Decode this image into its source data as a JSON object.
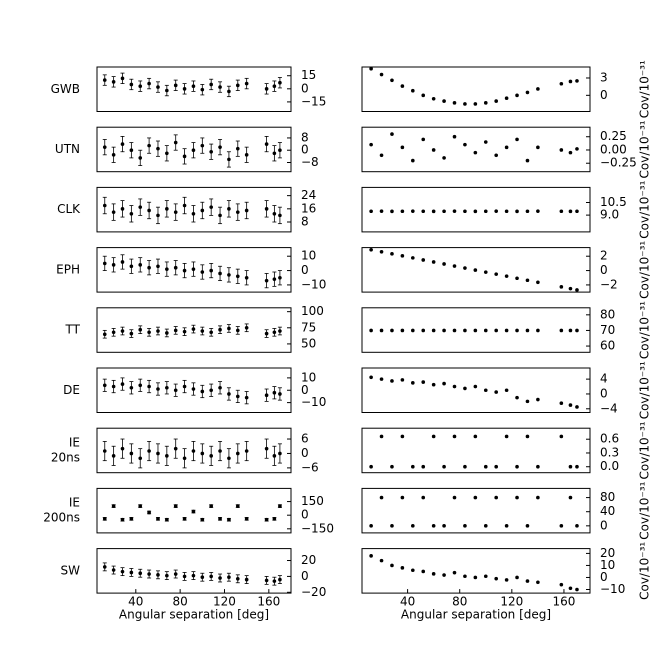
{
  "chart_data": [
    {
      "type": "scatter",
      "ylabel": [
        "GWB"
      ],
      "color": "#000000",
      "yerr": 6,
      "xlim": [
        5,
        180
      ],
      "ylim": [
        -26,
        25
      ],
      "yticks": [
        15,
        0,
        {
          "value": -15,
          "label": "−15"
        }
      ],
      "x": [
        12,
        20,
        28,
        36,
        44,
        52,
        60,
        68,
        76,
        84,
        92,
        100,
        108,
        116,
        124,
        132,
        140,
        158,
        165,
        170
      ],
      "values": [
        10,
        8,
        12,
        5,
        3,
        6,
        2,
        -2,
        4,
        0,
        3,
        -1,
        5,
        2,
        -3,
        4,
        6,
        0,
        3,
        7
      ]
    },
    {
      "type": "scatter",
      "ylabel": [
        "Cov/10⁻³¹"
      ],
      "color": "#000000",
      "xlim": [
        5,
        180
      ],
      "ylim": [
        -2.8,
        4.9
      ],
      "yticks": [
        3,
        0
      ],
      "x": [
        12,
        20,
        28,
        36,
        44,
        52,
        60,
        68,
        76,
        84,
        92,
        100,
        108,
        116,
        124,
        132,
        140,
        158,
        165,
        170
      ],
      "values": [
        4.6,
        3.6,
        2.6,
        1.6,
        0.8,
        0,
        -0.6,
        -1,
        -1.3,
        -1.5,
        -1.5,
        -1.3,
        -1,
        -0.5,
        0,
        0.5,
        1.1,
        2,
        2.4,
        2.5
      ]
    },
    {
      "type": "scatter",
      "ylabel": [
        "UTN"
      ],
      "color": "#000000",
      "yerr": 5,
      "xlim": [
        5,
        180
      ],
      "ylim": [
        -14,
        15
      ],
      "yticks": [
        8,
        0,
        {
          "value": -8,
          "label": "−8"
        }
      ],
      "x": [
        12,
        20,
        28,
        36,
        44,
        52,
        60,
        68,
        76,
        84,
        92,
        100,
        108,
        116,
        124,
        132,
        140,
        158,
        165,
        170
      ],
      "values": [
        2,
        -3,
        4,
        0,
        -5,
        3,
        1,
        -2,
        5,
        -4,
        0,
        3,
        -1,
        2,
        -6,
        1,
        -3,
        4,
        -2,
        0
      ]
    },
    {
      "type": "scatter",
      "ylabel": [
        "Cov/10⁻³¹"
      ],
      "color": "#000000",
      "xlim": [
        5,
        180
      ],
      "ylim": [
        -0.41,
        0.43
      ],
      "yticks": [
        0.25,
        {
          "value": 0,
          "label": "0.00"
        },
        {
          "value": -0.25,
          "label": "−0.25"
        }
      ],
      "x": [
        12,
        20,
        28,
        36,
        44,
        52,
        60,
        68,
        76,
        84,
        92,
        100,
        108,
        116,
        124,
        132,
        140,
        158,
        165,
        170
      ],
      "values": [
        0.1,
        -0.1,
        0.3,
        0.05,
        -0.2,
        0.2,
        0,
        -0.15,
        0.25,
        0.1,
        -0.05,
        0.15,
        -0.1,
        0.05,
        0.2,
        -0.2,
        0.05,
        0,
        -0.05,
        0.02
      ]
    },
    {
      "type": "scatter",
      "ylabel": [
        "CLK"
      ],
      "color": "#000000",
      "yerr": 5,
      "xlim": [
        5,
        180
      ],
      "ylim": [
        2,
        29
      ],
      "yticks": [
        24,
        16,
        8
      ],
      "x": [
        12,
        20,
        28,
        36,
        44,
        52,
        60,
        68,
        76,
        84,
        92,
        100,
        108,
        116,
        124,
        132,
        140,
        158,
        165,
        170
      ],
      "values": [
        18,
        14,
        16,
        13,
        17,
        15,
        12,
        16,
        14,
        18,
        13,
        15,
        17,
        12,
        16,
        14,
        15,
        16,
        13,
        12
      ]
    },
    {
      "type": "scatter",
      "ylabel": [
        "Cov/10⁻³¹"
      ],
      "color": "#000000",
      "xlim": [
        5,
        180
      ],
      "ylim": [
        7,
        12.3
      ],
      "yticks": [
        10.5,
        {
          "value": 9,
          "label": "9.0"
        }
      ],
      "x": [
        12,
        20,
        28,
        36,
        44,
        52,
        60,
        68,
        76,
        84,
        92,
        100,
        108,
        116,
        124,
        132,
        140,
        158,
        165,
        170
      ],
      "values": [
        9.46,
        9.47,
        9.45,
        9.46,
        9.47,
        9.46,
        9.45,
        9.46,
        9.47,
        9.46,
        9.45,
        9.46,
        9.47,
        9.46,
        9.45,
        9.46,
        9.47,
        9.46,
        9.45,
        9.46
      ]
    },
    {
      "type": "scatter",
      "ylabel": [
        "EPH"
      ],
      "color": "#000000",
      "yerr": 5,
      "xlim": [
        5,
        180
      ],
      "ylim": [
        -15,
        16
      ],
      "yticks": [
        10,
        0,
        {
          "value": -10,
          "label": "−10"
        }
      ],
      "x": [
        12,
        20,
        28,
        36,
        44,
        52,
        60,
        68,
        76,
        84,
        92,
        100,
        108,
        116,
        124,
        132,
        140,
        158,
        165,
        170
      ],
      "values": [
        5,
        4,
        6,
        3,
        4,
        2,
        3,
        1,
        2,
        0,
        1,
        -1,
        0,
        -2,
        -3,
        -4,
        -5,
        -7,
        -6,
        -5
      ]
    },
    {
      "type": "scatter",
      "ylabel": [
        "Cov/10⁻³¹"
      ],
      "color": "#000000",
      "xlim": [
        5,
        180
      ],
      "ylim": [
        -3,
        3.2
      ],
      "yticks": [
        2,
        0,
        {
          "value": -2,
          "label": "−2"
        }
      ],
      "x": [
        12,
        20,
        28,
        36,
        44,
        52,
        60,
        68,
        76,
        84,
        92,
        100,
        108,
        116,
        124,
        132,
        140,
        158,
        165,
        170
      ],
      "values": [
        2.9,
        2.62,
        2.33,
        2.05,
        1.77,
        1.48,
        1.2,
        0.92,
        0.63,
        0.35,
        0.07,
        -0.22,
        -0.5,
        -0.78,
        -1.07,
        -1.35,
        -1.63,
        -2.27,
        -2.52,
        -2.7
      ]
    },
    {
      "type": "scatter",
      "ylabel": [
        "TT"
      ],
      "color": "#000000",
      "yerr": 6,
      "xlim": [
        5,
        180
      ],
      "ylim": [
        37,
        106
      ],
      "yticks": [
        100,
        75,
        50
      ],
      "x": [
        12,
        20,
        28,
        36,
        44,
        52,
        60,
        68,
        76,
        84,
        92,
        100,
        108,
        116,
        124,
        132,
        140,
        158,
        165,
        170
      ],
      "values": [
        65,
        68,
        70,
        66,
        72,
        68,
        70,
        67,
        71,
        69,
        73,
        70,
        68,
        72,
        74,
        71,
        75,
        66,
        68,
        70
      ]
    },
    {
      "type": "scatter",
      "ylabel": [
        "Cov/10⁻³¹"
      ],
      "color": "#000000",
      "xlim": [
        5,
        180
      ],
      "ylim": [
        56,
        84.5
      ],
      "yticks": [
        80,
        70,
        60
      ],
      "x": [
        12,
        20,
        28,
        36,
        44,
        52,
        60,
        68,
        76,
        84,
        92,
        100,
        108,
        116,
        124,
        132,
        140,
        158,
        165,
        170
      ],
      "values": [
        70,
        70,
        70,
        70,
        70,
        70,
        70,
        70,
        70,
        70,
        70,
        70,
        70,
        70,
        70,
        70,
        70,
        70,
        70,
        70
      ]
    },
    {
      "type": "scatter",
      "ylabel": [
        "DE"
      ],
      "color": "#000000",
      "yerr": 5,
      "xlim": [
        5,
        180
      ],
      "ylim": [
        -18,
        18
      ],
      "yticks": [
        10,
        0,
        {
          "value": -10,
          "label": "−10"
        }
      ],
      "x": [
        12,
        20,
        28,
        36,
        44,
        52,
        60,
        68,
        76,
        84,
        92,
        100,
        108,
        116,
        124,
        132,
        140,
        158,
        165,
        170
      ],
      "values": [
        4,
        3,
        5,
        2,
        4,
        3,
        1,
        2,
        0,
        3,
        1,
        -1,
        0,
        2,
        -3,
        -5,
        -6,
        -4,
        -2,
        -3
      ]
    },
    {
      "type": "scatter",
      "ylabel": [
        "Cov/10⁻³¹"
      ],
      "color": "#000000",
      "xlim": [
        5,
        180
      ],
      "ylim": [
        -5,
        7
      ],
      "yticks": [
        4,
        0,
        {
          "value": -4,
          "label": "−4"
        }
      ],
      "x": [
        12,
        20,
        28,
        36,
        44,
        52,
        60,
        68,
        76,
        84,
        92,
        100,
        108,
        116,
        124,
        132,
        140,
        158,
        165,
        170
      ],
      "values": [
        4.5,
        4,
        3.5,
        3.8,
        3,
        3.2,
        2.5,
        2.8,
        2,
        1.5,
        2,
        1,
        0.5,
        1,
        -1,
        -2,
        -1.5,
        -2.5,
        -3,
        -3.5
      ]
    },
    {
      "type": "scatter",
      "ylabel": [
        "IE",
        "20ns"
      ],
      "color": "#000000",
      "yerr": 4,
      "xlim": [
        5,
        180
      ],
      "ylim": [
        -8,
        10.5
      ],
      "yticks": [
        6,
        0,
        {
          "value": -6,
          "label": "−6"
        }
      ],
      "x": [
        12,
        20,
        28,
        36,
        44,
        52,
        60,
        68,
        76,
        84,
        92,
        100,
        108,
        116,
        124,
        132,
        140,
        158,
        165,
        170
      ],
      "values": [
        1,
        -1,
        2,
        0,
        -2,
        1,
        0,
        -1,
        2,
        -2,
        1,
        0,
        -1,
        1,
        -2,
        0,
        1,
        2,
        -1,
        0
      ]
    },
    {
      "type": "scatter",
      "ylabel": [
        "Cov/10⁻³¹"
      ],
      "color": "#000000",
      "xlim": [
        5,
        180
      ],
      "ylim": [
        -0.13,
        0.84
      ],
      "yticks": [
        0.6,
        0.3,
        {
          "value": 0,
          "label": "0.0"
        }
      ],
      "x": [
        12,
        20,
        28,
        36,
        44,
        52,
        60,
        68,
        76,
        84,
        92,
        100,
        108,
        116,
        124,
        132,
        140,
        158,
        165,
        170
      ],
      "values": [
        0,
        0.66,
        0,
        0.66,
        0,
        0,
        0.66,
        0,
        0.66,
        0,
        0.66,
        0,
        0,
        0.66,
        0,
        0.66,
        0,
        0.66,
        0,
        0
      ]
    },
    {
      "type": "scatter",
      "ylabel": [
        "IE",
        "200ns"
      ],
      "color": "#000000",
      "yerr": 15,
      "xlim": [
        5,
        180
      ],
      "ylim": [
        -195,
        295
      ],
      "yticks": [
        150,
        0,
        {
          "value": -150,
          "label": "−150"
        }
      ],
      "x": [
        12,
        20,
        28,
        36,
        44,
        52,
        60,
        68,
        76,
        84,
        92,
        100,
        108,
        116,
        124,
        132,
        140,
        158,
        165,
        170
      ],
      "values": [
        -40,
        100,
        -50,
        -40,
        100,
        30,
        -40,
        -50,
        100,
        -40,
        40,
        -50,
        100,
        -40,
        -50,
        100,
        -40,
        -50,
        -40,
        100
      ]
    },
    {
      "type": "scatter",
      "ylabel": [
        "Cov/10⁻³¹"
      ],
      "color": "#000000",
      "xlim": [
        5,
        180
      ],
      "ylim": [
        -20,
        106
      ],
      "yticks": [
        80,
        40,
        0
      ],
      "x": [
        12,
        20,
        28,
        36,
        44,
        52,
        60,
        68,
        76,
        84,
        92,
        100,
        108,
        116,
        124,
        132,
        140,
        158,
        165,
        170
      ],
      "values": [
        0,
        80,
        0,
        80,
        0,
        80,
        0,
        0,
        80,
        0,
        80,
        0,
        80,
        0,
        80,
        0,
        80,
        0,
        80,
        0
      ]
    },
    {
      "type": "scatter",
      "ylabel": [
        "SW"
      ],
      "color": "#000000",
      "yerr": 5,
      "xlim": [
        5,
        180
      ],
      "ylim": [
        -21,
        35
      ],
      "yticks": [
        20,
        0,
        {
          "value": -20,
          "label": "−20"
        }
      ],
      "xticks": [
        40,
        80,
        120,
        160
      ],
      "xlabel": "Angular separation [deg]",
      "x": [
        12,
        20,
        28,
        36,
        44,
        52,
        60,
        68,
        76,
        84,
        92,
        100,
        108,
        116,
        124,
        132,
        140,
        158,
        165,
        170
      ],
      "values": [
        12,
        8,
        6,
        5,
        4,
        3,
        2,
        1,
        3,
        0,
        1,
        -1,
        0,
        -2,
        -1,
        -3,
        -4,
        -5,
        -6,
        -4
      ]
    },
    {
      "type": "scatter",
      "ylabel": [
        "Cov/10⁻³¹"
      ],
      "color": "#000000",
      "xlim": [
        5,
        180
      ],
      "ylim": [
        -13,
        24
      ],
      "yticks": [
        20,
        10,
        0,
        {
          "value": -10,
          "label": "−10"
        }
      ],
      "xticks": [
        40,
        80,
        120,
        160
      ],
      "xlabel": "Angular separation [deg]",
      "x": [
        12,
        20,
        28,
        36,
        44,
        52,
        60,
        68,
        76,
        84,
        92,
        100,
        108,
        116,
        124,
        132,
        140,
        158,
        165,
        170
      ],
      "values": [
        18,
        14,
        10,
        8,
        6,
        5,
        3,
        2,
        4,
        1,
        0,
        1,
        -1,
        -2,
        0,
        -3,
        -4,
        -6,
        -9,
        -10
      ]
    }
  ]
}
